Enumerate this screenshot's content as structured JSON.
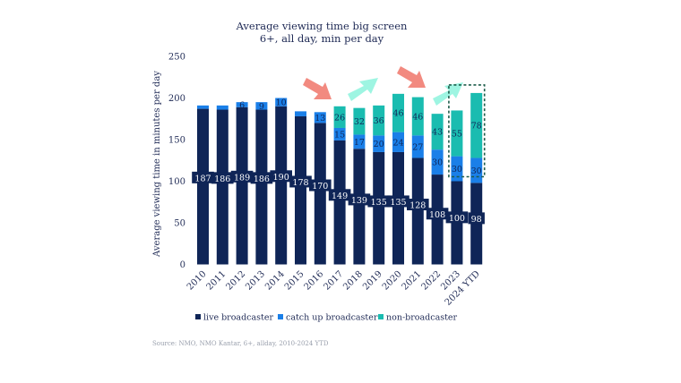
{
  "chart_data": {
    "type": "bar",
    "stacked": true,
    "title": "Average viewing time big screen",
    "subtitle": "6+, all day, min per day",
    "xlabel": "",
    "ylabel": "Average viewing time in minutes per day",
    "ylim": [
      0,
      250
    ],
    "yticks": [
      "0",
      "50",
      "100",
      "150",
      "200",
      "250"
    ],
    "grid": false,
    "legend_position": "bottom",
    "categories": [
      "2010",
      "2011",
      "2012",
      "2013",
      "2014",
      "2015",
      "2016",
      "2017",
      "2018",
      "2019",
      "2020",
      "2021",
      "2022",
      "2023",
      "2024 YTD"
    ],
    "series": [
      {
        "name": "live broadcaster",
        "color": "#0f2557",
        "label_color": "#ffffff",
        "values": [
          187,
          186,
          189,
          186,
          190,
          178,
          170,
          149,
          139,
          135,
          135,
          128,
          108,
          100,
          98
        ],
        "labels": [
          "187",
          "186",
          "189",
          "186",
          "190",
          "178",
          "170",
          "149",
          "139",
          "135",
          "135",
          "128",
          "108",
          "100",
          "98"
        ]
      },
      {
        "name": "catch up broadcaster",
        "color": "#1a7fe8",
        "label_color": "#0f2557",
        "values": [
          4,
          5,
          6,
          9,
          10,
          6,
          13,
          15,
          17,
          20,
          24,
          27,
          30,
          30,
          30
        ],
        "labels": [
          "",
          "",
          "6",
          "9",
          "10",
          "",
          "13",
          "15",
          "17",
          "20",
          "24",
          "27",
          "30",
          "30",
          "30"
        ]
      },
      {
        "name": "non-broadcaster",
        "color": "#1abcb0",
        "label_color": "#0f2557",
        "values": [
          0,
          0,
          0,
          0,
          0,
          0,
          0,
          26,
          32,
          36,
          46,
          46,
          43,
          55,
          78
        ],
        "labels": [
          "",
          "",
          "",
          "",
          "",
          "",
          "",
          "26",
          "32",
          "36",
          "46",
          "46",
          "43",
          "55",
          "78"
        ]
      }
    ],
    "annotations": {
      "trend_arrows": [
        {
          "between": [
            "2016",
            "2017"
          ],
          "trend": "down",
          "color": "#f28a80"
        },
        {
          "between": [
            "2017",
            "2019"
          ],
          "trend": "up",
          "color": "#9ef5e2"
        },
        {
          "between": [
            "2020",
            "2021"
          ],
          "trend": "down",
          "color": "#f28a80"
        },
        {
          "between": [
            "2022",
            "2023"
          ],
          "trend": "up",
          "color": "#9ef5e2"
        }
      ],
      "highlight_box": {
        "categories": [
          "2023",
          "2024 YTD"
        ],
        "series": "non-broadcaster",
        "color": "#1d5c4a"
      }
    },
    "source": "Source: NMO, NMO Kantar, 6+, allday, 2010-2024 YTD"
  }
}
